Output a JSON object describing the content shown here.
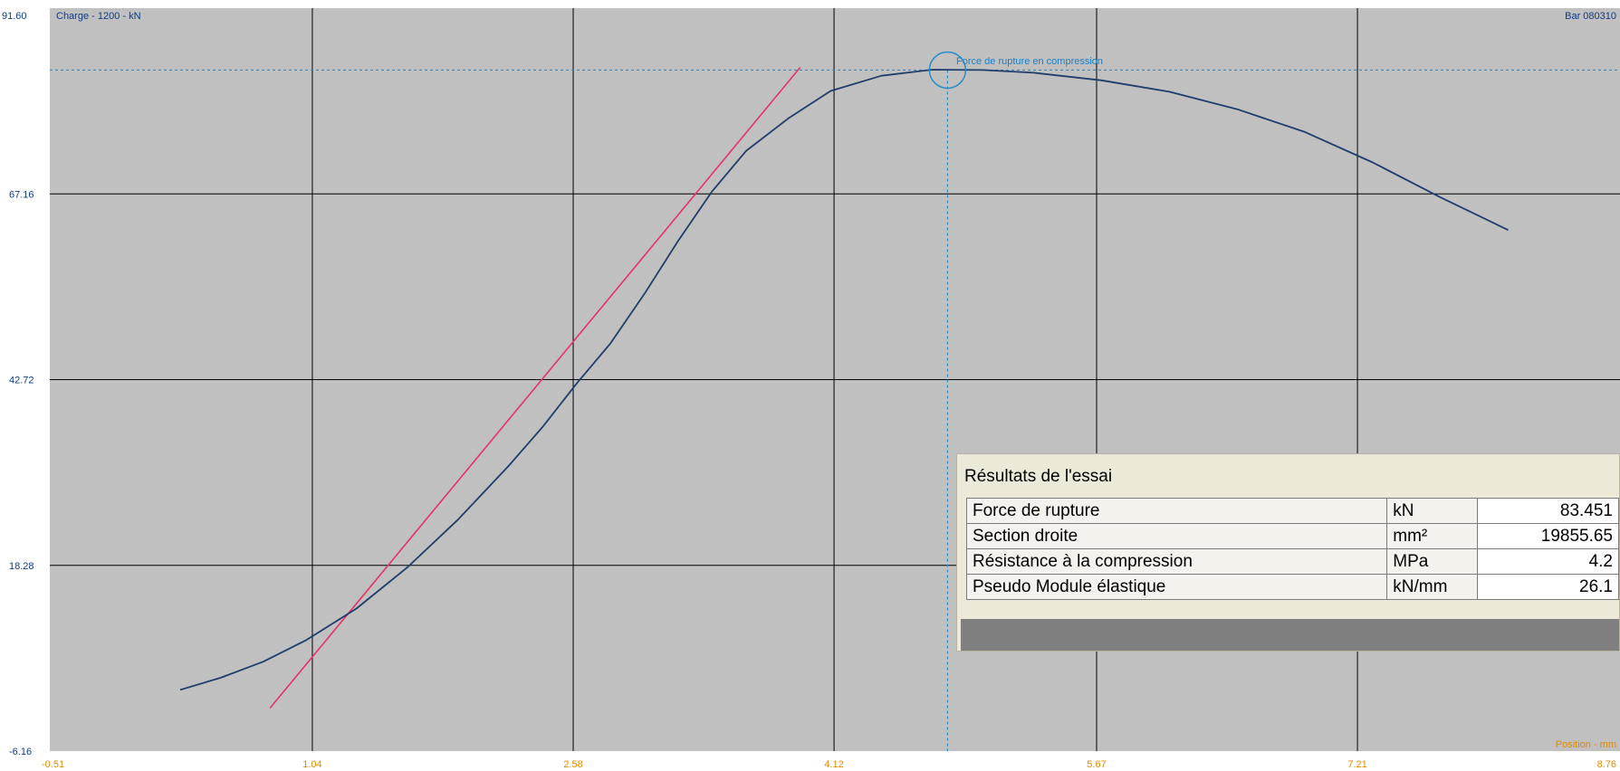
{
  "chart_data": {
    "type": "line",
    "header_left_value": "91.60",
    "title": "Charge - 1200 - kN",
    "header_right": "Bar 080310",
    "xlabel": "Position - mm",
    "xlim": [
      -0.51,
      8.76
    ],
    "ylim": [
      -6.16,
      91.6
    ],
    "x_ticks": [
      "-0.51",
      "1.04",
      "2.58",
      "4.12",
      "5.67",
      "7.21",
      "8.76"
    ],
    "y_ticks": [
      "91.60",
      "67.16",
      "42.72",
      "18.28",
      "-6.16"
    ],
    "grid": true,
    "colors": {
      "background": "#c0c0c0",
      "grid": "#000000",
      "curve": "#1f3d6b",
      "tangent": "#e8306a",
      "marker": "#2a8cc7",
      "y_tick": "#0b3a8a",
      "x_tick": "#e08a00"
    },
    "series": [
      {
        "x": [
          0.26,
          0.5,
          0.75,
          1.0,
          1.3,
          1.6,
          1.9,
          2.2,
          2.4,
          2.6,
          2.8,
          3.0,
          3.2,
          3.4,
          3.6,
          3.85,
          4.1,
          4.4,
          4.7,
          5.0,
          5.3,
          5.7,
          6.1,
          6.5,
          6.9,
          7.3,
          7.7,
          8.1
        ],
        "y": [
          1.9,
          3.5,
          5.6,
          8.4,
          12.6,
          18.0,
          24.3,
          31.4,
          36.5,
          42.2,
          47.5,
          54.0,
          61.0,
          67.5,
          72.8,
          77.1,
          80.7,
          82.7,
          83.5,
          83.45,
          83.1,
          82.1,
          80.6,
          78.3,
          75.3,
          71.3,
          66.7,
          62.4
        ]
      }
    ],
    "tangent_line": {
      "x": [
        0.79,
        3.92
      ],
      "y": [
        -0.5,
        83.8
      ]
    },
    "peak_marker": {
      "x": 4.79,
      "y": 83.45,
      "label": "Force de rupture en compression"
    }
  },
  "results": {
    "title": "Résultats de l'essai",
    "rows": [
      {
        "label": "Force de rupture",
        "unit": "kN",
        "value": "83.451"
      },
      {
        "label": "Section droite",
        "unit": "mm²",
        "value": "19855.65"
      },
      {
        "label": "Résistance à la compression",
        "unit": "MPa",
        "value": "4.2"
      },
      {
        "label": "Pseudo Module élastique",
        "unit": "kN/mm",
        "value": "26.1"
      }
    ]
  }
}
